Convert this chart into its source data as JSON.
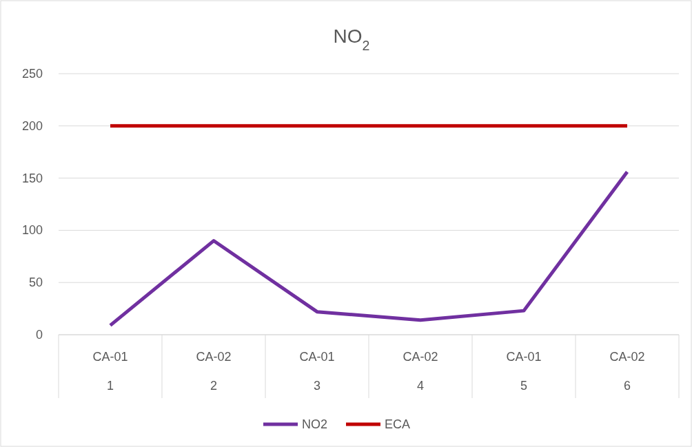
{
  "chart_data": {
    "type": "line",
    "title": "NO$_{2}$",
    "categories": [
      "CA-01\n1",
      "CA-02\n2",
      "CA-01\n3",
      "CA-02\n4",
      "CA-01\n5",
      "CA-02\n6"
    ],
    "series": [
      {
        "name": "NO2",
        "color": "#7030a0",
        "values": [
          9,
          90,
          22,
          14,
          23,
          156
        ]
      },
      {
        "name": "ECA",
        "color": "#c00000",
        "values": [
          200,
          200,
          200,
          200,
          200,
          200
        ]
      }
    ],
    "ylim": [
      0,
      250
    ],
    "yticks": [
      0,
      50,
      100,
      150,
      200,
      250
    ],
    "grid": "y",
    "legend": "bottom",
    "marker": "none",
    "line_style": "solid"
  }
}
